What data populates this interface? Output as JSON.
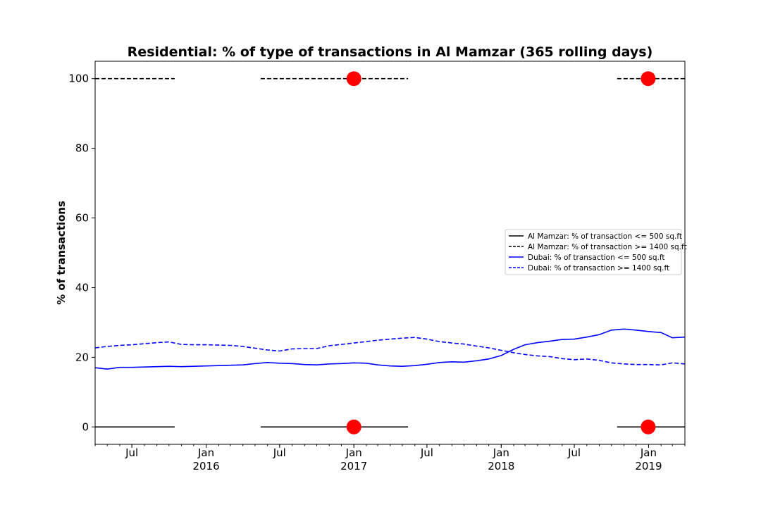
{
  "chart_data": {
    "type": "line",
    "title": "Residential: % of type of transactions in Al Mamzar (365 rolling days)",
    "ylabel": "% of transactions",
    "xlabel": "",
    "xlim": [
      "2015-04-01",
      "2019-04-01"
    ],
    "ylim": [
      -5,
      105
    ],
    "y_ticks": [
      0,
      20,
      40,
      60,
      80,
      100
    ],
    "x_ticks": [
      {
        "date": "2015-07-01",
        "label": "Jul",
        "sublabel": ""
      },
      {
        "date": "2016-01-01",
        "label": "Jan",
        "sublabel": "2016"
      },
      {
        "date": "2016-07-01",
        "label": "Jul",
        "sublabel": ""
      },
      {
        "date": "2017-01-01",
        "label": "Jan",
        "sublabel": "2017"
      },
      {
        "date": "2017-07-01",
        "label": "Jul",
        "sublabel": ""
      },
      {
        "date": "2018-01-01",
        "label": "Jan",
        "sublabel": "2018"
      },
      {
        "date": "2018-07-01",
        "label": "Jul",
        "sublabel": ""
      },
      {
        "date": "2019-01-01",
        "label": "Jan",
        "sublabel": "2019"
      }
    ],
    "grid": false,
    "legend_position": "center-right",
    "series": [
      {
        "name": "Al Mamzar: % of transaction <= 500 sq.ft",
        "color": "#000000",
        "style": "solid",
        "segments": [
          [
            [
              "2015-04-01",
              0
            ],
            [
              "2015-10-15",
              0
            ]
          ],
          [
            [
              "2016-05-15",
              0
            ],
            [
              "2017-05-15",
              0
            ]
          ],
          [
            [
              "2018-10-15",
              0
            ],
            [
              "2019-04-01",
              0
            ]
          ]
        ]
      },
      {
        "name": "Al Mamzar: % of transaction >= 1400 sq.ft",
        "color": "#000000",
        "style": "dashed",
        "segments": [
          [
            [
              "2015-04-01",
              100
            ],
            [
              "2015-10-15",
              100
            ]
          ],
          [
            [
              "2016-05-15",
              100
            ],
            [
              "2017-05-15",
              100
            ]
          ],
          [
            [
              "2018-10-15",
              100
            ],
            [
              "2019-04-01",
              100
            ]
          ]
        ]
      },
      {
        "name": "Dubai: % of transaction <= 500 sq.ft",
        "color": "#0000ff",
        "style": "solid",
        "points": [
          [
            "2015-04-01",
            17.0
          ],
          [
            "2015-05-01",
            16.6
          ],
          [
            "2015-06-01",
            17.1
          ],
          [
            "2015-07-01",
            17.1
          ],
          [
            "2015-08-01",
            17.2
          ],
          [
            "2015-09-01",
            17.3
          ],
          [
            "2015-10-01",
            17.4
          ],
          [
            "2015-11-01",
            17.3
          ],
          [
            "2015-12-01",
            17.4
          ],
          [
            "2016-01-01",
            17.5
          ],
          [
            "2016-02-01",
            17.6
          ],
          [
            "2016-03-01",
            17.7
          ],
          [
            "2016-04-01",
            17.8
          ],
          [
            "2016-05-01",
            18.2
          ],
          [
            "2016-06-01",
            18.5
          ],
          [
            "2016-07-01",
            18.3
          ],
          [
            "2016-08-01",
            18.2
          ],
          [
            "2016-09-01",
            17.9
          ],
          [
            "2016-10-01",
            17.8
          ],
          [
            "2016-11-01",
            18.1
          ],
          [
            "2016-12-01",
            18.2
          ],
          [
            "2017-01-01",
            18.4
          ],
          [
            "2017-02-01",
            18.3
          ],
          [
            "2017-03-01",
            17.8
          ],
          [
            "2017-04-01",
            17.5
          ],
          [
            "2017-05-01",
            17.4
          ],
          [
            "2017-06-01",
            17.6
          ],
          [
            "2017-07-01",
            18.0
          ],
          [
            "2017-08-01",
            18.5
          ],
          [
            "2017-09-01",
            18.7
          ],
          [
            "2017-10-01",
            18.6
          ],
          [
            "2017-11-01",
            19.0
          ],
          [
            "2017-12-01",
            19.5
          ],
          [
            "2018-01-01",
            20.5
          ],
          [
            "2018-02-01",
            22.3
          ],
          [
            "2018-03-01",
            23.6
          ],
          [
            "2018-04-01",
            24.2
          ],
          [
            "2018-05-01",
            24.6
          ],
          [
            "2018-06-01",
            25.1
          ],
          [
            "2018-07-01",
            25.2
          ],
          [
            "2018-08-01",
            25.8
          ],
          [
            "2018-09-01",
            26.5
          ],
          [
            "2018-10-01",
            27.8
          ],
          [
            "2018-11-01",
            28.1
          ],
          [
            "2018-12-01",
            27.8
          ],
          [
            "2019-01-01",
            27.4
          ],
          [
            "2019-02-01",
            27.1
          ],
          [
            "2019-03-01",
            25.6
          ],
          [
            "2019-04-01",
            25.8
          ]
        ]
      },
      {
        "name": "Dubai: % of transaction >= 1400 sq.ft",
        "color": "#0000ff",
        "style": "dashed",
        "points": [
          [
            "2015-04-01",
            22.7
          ],
          [
            "2015-05-01",
            23.1
          ],
          [
            "2015-06-01",
            23.4
          ],
          [
            "2015-07-01",
            23.6
          ],
          [
            "2015-08-01",
            23.9
          ],
          [
            "2015-09-01",
            24.2
          ],
          [
            "2015-10-01",
            24.4
          ],
          [
            "2015-11-01",
            23.7
          ],
          [
            "2015-12-01",
            23.6
          ],
          [
            "2016-01-01",
            23.6
          ],
          [
            "2016-02-01",
            23.5
          ],
          [
            "2016-03-01",
            23.4
          ],
          [
            "2016-04-01",
            23.1
          ],
          [
            "2016-05-01",
            22.6
          ],
          [
            "2016-06-01",
            22.1
          ],
          [
            "2016-07-01",
            21.8
          ],
          [
            "2016-08-01",
            22.4
          ],
          [
            "2016-09-01",
            22.5
          ],
          [
            "2016-10-01",
            22.5
          ],
          [
            "2016-11-01",
            23.3
          ],
          [
            "2016-12-01",
            23.7
          ],
          [
            "2017-01-01",
            24.1
          ],
          [
            "2017-02-01",
            24.5
          ],
          [
            "2017-03-01",
            24.9
          ],
          [
            "2017-04-01",
            25.2
          ],
          [
            "2017-05-01",
            25.5
          ],
          [
            "2017-06-01",
            25.7
          ],
          [
            "2017-07-01",
            25.2
          ],
          [
            "2017-08-01",
            24.5
          ],
          [
            "2017-09-01",
            24.1
          ],
          [
            "2017-10-01",
            23.8
          ],
          [
            "2017-11-01",
            23.2
          ],
          [
            "2017-12-01",
            22.7
          ],
          [
            "2018-01-01",
            22.0
          ],
          [
            "2018-02-01",
            21.3
          ],
          [
            "2018-03-01",
            20.8
          ],
          [
            "2018-04-01",
            20.4
          ],
          [
            "2018-05-01",
            20.2
          ],
          [
            "2018-06-01",
            19.6
          ],
          [
            "2018-07-01",
            19.3
          ],
          [
            "2018-08-01",
            19.5
          ],
          [
            "2018-09-01",
            19.1
          ],
          [
            "2018-10-01",
            18.4
          ],
          [
            "2018-11-01",
            18.1
          ],
          [
            "2018-12-01",
            17.9
          ],
          [
            "2019-01-01",
            17.9
          ],
          [
            "2019-02-01",
            17.8
          ],
          [
            "2019-03-01",
            18.4
          ],
          [
            "2019-04-01",
            18.1
          ]
        ]
      }
    ],
    "markers": {
      "color": "#ff0000",
      "shape": "circle",
      "points": [
        [
          "2017-01-01",
          100
        ],
        [
          "2018-12-31",
          100
        ],
        [
          "2017-01-01",
          0
        ],
        [
          "2018-12-31",
          0
        ]
      ]
    }
  }
}
